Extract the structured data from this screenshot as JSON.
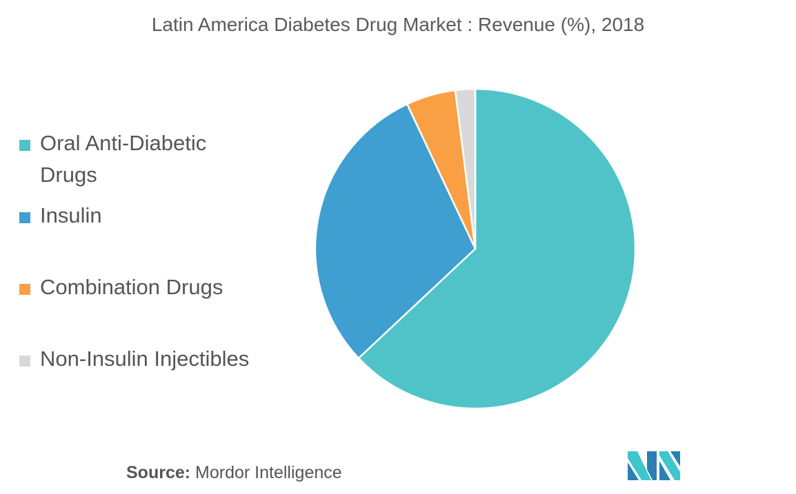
{
  "chart_data": {
    "type": "pie",
    "title": "Latin America Diabetes Drug Market : Revenue (%), 2018",
    "categories": [
      "Oral Anti-Diabetic Drugs",
      "Insulin",
      "Combination Drugs",
      "Non-Insulin Injectibles"
    ],
    "values": [
      63,
      30,
      5,
      2
    ],
    "colors": [
      "#4fc3c8",
      "#3e9fd0",
      "#f9a044",
      "#d9d9d9"
    ],
    "legend_position": "left"
  },
  "legend": {
    "items": [
      {
        "label": "Oral Anti-Diabetic Drugs",
        "color": "#4fc3c8"
      },
      {
        "label": "Insulin",
        "color": "#3e9fd0"
      },
      {
        "label": "Combination Drugs",
        "color": "#f9a044"
      },
      {
        "label": "Non-Insulin Injectibles",
        "color": "#d9d9d9"
      }
    ]
  },
  "footer": {
    "source_label": "Source:",
    "source_value": " Mordor Intelligence"
  },
  "logo": {
    "icon": "mordor-intelligence-logo-icon",
    "colors": [
      "#3ec6cc",
      "#2d7fb3"
    ]
  }
}
